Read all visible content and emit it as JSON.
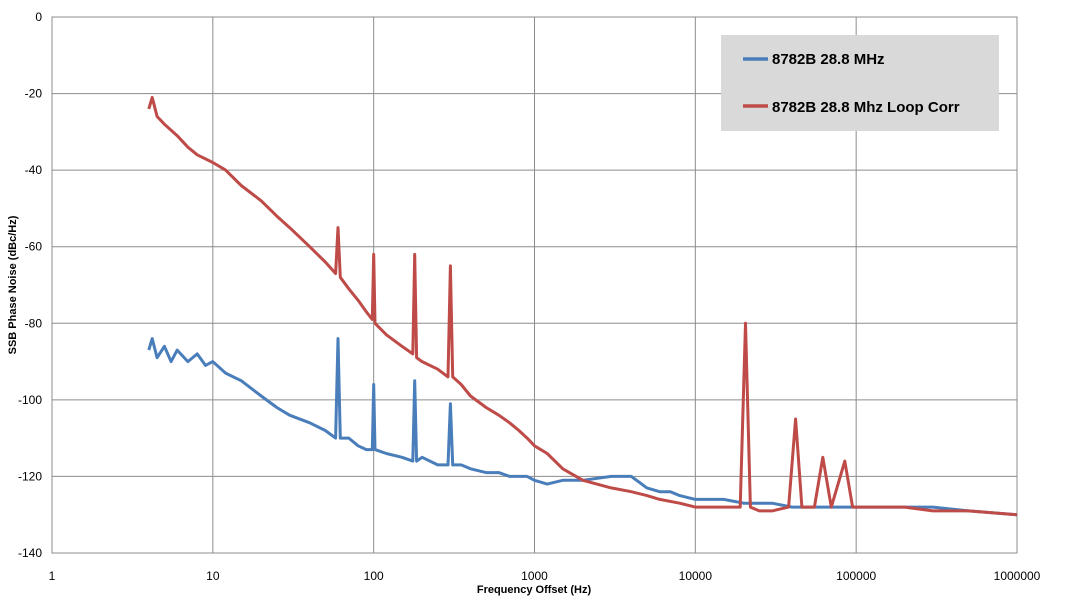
{
  "chart_data": {
    "type": "line",
    "title": "",
    "xlabel": "Frequency Offset (Hz)",
    "ylabel": "SSB Phase  Noise (dBc/Hz)",
    "x_scale": "log",
    "xlim": [
      1,
      1000000
    ],
    "ylim": [
      -140,
      0
    ],
    "x_ticks": [
      1,
      10,
      100,
      1000,
      10000,
      100000,
      1000000
    ],
    "x_tick_labels": [
      "1",
      "10",
      "100",
      "1000",
      "10000",
      "100000",
      "1000000"
    ],
    "y_ticks": [
      0,
      -20,
      -40,
      -60,
      -80,
      -100,
      -120,
      -140
    ],
    "y_tick_labels": [
      "0",
      "-20",
      "-40",
      "-60",
      "-80",
      "-100",
      "-120",
      "-140"
    ],
    "grid": true,
    "legend_position": "top-right",
    "series": [
      {
        "name": "8782B 28.8 MHz",
        "color": "#4a7ebb",
        "points": [
          [
            4,
            -87
          ],
          [
            4.2,
            -84
          ],
          [
            4.5,
            -89
          ],
          [
            5,
            -86
          ],
          [
            5.5,
            -90
          ],
          [
            6,
            -87
          ],
          [
            7,
            -90
          ],
          [
            8,
            -88
          ],
          [
            9,
            -91
          ],
          [
            10,
            -90
          ],
          [
            12,
            -93
          ],
          [
            15,
            -95
          ],
          [
            20,
            -99
          ],
          [
            25,
            -102
          ],
          [
            30,
            -104
          ],
          [
            40,
            -106
          ],
          [
            50,
            -108
          ],
          [
            58,
            -110
          ],
          [
            60,
            -84
          ],
          [
            62,
            -110
          ],
          [
            70,
            -110
          ],
          [
            80,
            -112
          ],
          [
            90,
            -113
          ],
          [
            98,
            -113
          ],
          [
            100,
            -96
          ],
          [
            102,
            -113
          ],
          [
            120,
            -114
          ],
          [
            150,
            -115
          ],
          [
            175,
            -116
          ],
          [
            180,
            -95
          ],
          [
            185,
            -116
          ],
          [
            200,
            -115
          ],
          [
            250,
            -117
          ],
          [
            290,
            -117
          ],
          [
            300,
            -101
          ],
          [
            310,
            -117
          ],
          [
            350,
            -117
          ],
          [
            400,
            -118
          ],
          [
            500,
            -119
          ],
          [
            600,
            -119
          ],
          [
            700,
            -120
          ],
          [
            800,
            -120
          ],
          [
            900,
            -120
          ],
          [
            1000,
            -121
          ],
          [
            1200,
            -122
          ],
          [
            1500,
            -121
          ],
          [
            2000,
            -121
          ],
          [
            3000,
            -120
          ],
          [
            4000,
            -120
          ],
          [
            5000,
            -123
          ],
          [
            6000,
            -124
          ],
          [
            7000,
            -124
          ],
          [
            8000,
            -125
          ],
          [
            10000,
            -126
          ],
          [
            15000,
            -126
          ],
          [
            20000,
            -127
          ],
          [
            25000,
            -127
          ],
          [
            30000,
            -127
          ],
          [
            40000,
            -128
          ],
          [
            60000,
            -128
          ],
          [
            100000,
            -128
          ],
          [
            200000,
            -128
          ],
          [
            300000,
            -128
          ],
          [
            500000,
            -129
          ],
          [
            1000000,
            -130
          ]
        ]
      },
      {
        "name": "8782B 28.8 Mhz Loop Corr",
        "color": "#be4b48",
        "points": [
          [
            4,
            -24
          ],
          [
            4.2,
            -21
          ],
          [
            4.5,
            -26
          ],
          [
            5,
            -28
          ],
          [
            6,
            -31
          ],
          [
            7,
            -34
          ],
          [
            8,
            -36
          ],
          [
            10,
            -38
          ],
          [
            12,
            -40
          ],
          [
            15,
            -44
          ],
          [
            20,
            -48
          ],
          [
            25,
            -52
          ],
          [
            30,
            -55
          ],
          [
            40,
            -60
          ],
          [
            50,
            -64
          ],
          [
            58,
            -67
          ],
          [
            60,
            -55
          ],
          [
            62,
            -68
          ],
          [
            70,
            -71
          ],
          [
            80,
            -74
          ],
          [
            90,
            -77
          ],
          [
            98,
            -79
          ],
          [
            100,
            -62
          ],
          [
            102,
            -80
          ],
          [
            120,
            -83
          ],
          [
            150,
            -86
          ],
          [
            175,
            -88
          ],
          [
            180,
            -62
          ],
          [
            185,
            -89
          ],
          [
            200,
            -90
          ],
          [
            250,
            -92
          ],
          [
            290,
            -94
          ],
          [
            300,
            -65
          ],
          [
            310,
            -94
          ],
          [
            350,
            -96
          ],
          [
            400,
            -99
          ],
          [
            500,
            -102
          ],
          [
            600,
            -104
          ],
          [
            700,
            -106
          ],
          [
            800,
            -108
          ],
          [
            900,
            -110
          ],
          [
            1000,
            -112
          ],
          [
            1200,
            -114
          ],
          [
            1500,
            -118
          ],
          [
            2000,
            -121
          ],
          [
            3000,
            -123
          ],
          [
            4000,
            -124
          ],
          [
            5000,
            -125
          ],
          [
            6000,
            -126
          ],
          [
            8000,
            -127
          ],
          [
            10000,
            -128
          ],
          [
            15000,
            -128
          ],
          [
            19000,
            -128
          ],
          [
            20500,
            -80
          ],
          [
            22000,
            -128
          ],
          [
            25000,
            -129
          ],
          [
            30000,
            -129
          ],
          [
            38000,
            -128
          ],
          [
            42000,
            -105
          ],
          [
            46000,
            -128
          ],
          [
            55000,
            -128
          ],
          [
            62000,
            -115
          ],
          [
            70000,
            -128
          ],
          [
            85000,
            -116
          ],
          [
            95000,
            -128
          ],
          [
            120000,
            -128
          ],
          [
            200000,
            -128
          ],
          [
            300000,
            -129
          ],
          [
            500000,
            -129
          ],
          [
            1000000,
            -130
          ]
        ]
      }
    ]
  }
}
